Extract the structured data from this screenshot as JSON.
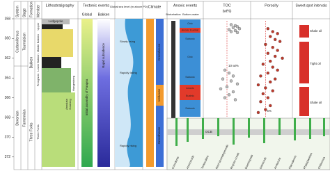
{
  "headers": {
    "system": "System",
    "stage": "Stage",
    "formation": "Formation",
    "member": "Member",
    "lithostratigraphy": "Lithostratigraphy",
    "tectonic": "Tectonic events",
    "tectonic_global": "Global",
    "tectonic_bakken": "Bakken",
    "sea_level": "Global sea level (m above PD)",
    "climate": "Climate",
    "anoxic": "Anoxic events",
    "bioturbation": "Bioturbation",
    "bottom_water": "Bottom-water",
    "toc": "TOC",
    "toc_unit": "(wt%)",
    "porosity": "Porosity",
    "sweet_spot": "Sweet-spot intervals"
  },
  "age": {
    "ylim": [
      358,
      373
    ],
    "ticks": [
      358,
      360,
      362,
      364,
      366,
      368,
      370,
      372
    ]
  },
  "systems": [
    "Carboniferous",
    "Devonian"
  ],
  "stages": [
    "Tournaisian",
    "Famennian"
  ],
  "formations": [
    "Bakken",
    "Three Forks"
  ],
  "members": [
    "Lodgepole",
    "Upper",
    "Middle Bakken",
    "Lower Bakken",
    "Pronghorn",
    "Three Forks"
  ],
  "litho_events": [
    "Annulata",
    "Dasberg",
    "Hangenberg"
  ],
  "tectonic_labels": [
    "Initial assembly of Pangea",
    "Rapid subsidence"
  ],
  "sea_level_labels": [
    "Slowly rising",
    "Rapidly falling",
    "Rapidly rising"
  ],
  "climate_labels": [
    "Greenhouse",
    "Icehouse",
    "Greenhouse"
  ],
  "bottom_water_labels": [
    "Oxic",
    "Anoxic Euxinic",
    "Suboxic",
    "Oxic",
    "Suboxic",
    "Anoxic",
    "Euxinic",
    "Suboxic"
  ],
  "toc": {
    "xlim": [
      0,
      20
    ],
    "reference": {
      "value": 10,
      "label": "10 wt%"
    },
    "points": [
      [
        12,
        358.6
      ],
      [
        14,
        358.7
      ],
      [
        15,
        358.8
      ],
      [
        13,
        358.9
      ],
      [
        16,
        359.0
      ],
      [
        11,
        359.1
      ],
      [
        14,
        359.2
      ],
      [
        12,
        359.3
      ],
      [
        15,
        359.4
      ],
      [
        9,
        363.2
      ],
      [
        11,
        363.5
      ],
      [
        13,
        363.8
      ],
      [
        8,
        364.1
      ],
      [
        12,
        364.3
      ],
      [
        15,
        364.6
      ],
      [
        10,
        364.9
      ],
      [
        7,
        365.1
      ],
      [
        13,
        365.4
      ],
      [
        11,
        365.7
      ],
      [
        9,
        366.0
      ],
      [
        14,
        366.2
      ]
    ]
  },
  "porosity": {
    "xlim": [
      0,
      15
    ],
    "reference": {
      "value": 5,
      "label": "5%"
    },
    "points": [
      [
        6,
        359.0
      ],
      [
        8,
        359.3
      ],
      [
        10,
        359.5
      ],
      [
        7,
        359.8
      ],
      [
        9,
        360.1
      ],
      [
        11,
        360.3
      ],
      [
        5,
        360.6
      ],
      [
        8,
        360.9
      ],
      [
        10,
        361.2
      ],
      [
        6,
        361.5
      ],
      [
        9,
        361.8
      ],
      [
        12,
        362.0
      ],
      [
        7,
        362.3
      ],
      [
        4,
        362.6
      ],
      [
        8,
        362.9
      ],
      [
        10,
        363.2
      ],
      [
        6,
        363.5
      ],
      [
        3,
        363.8
      ],
      [
        9,
        364.1
      ],
      [
        7,
        364.4
      ],
      [
        2,
        364.7
      ],
      [
        5,
        365.0
      ],
      [
        8,
        365.3
      ],
      [
        4,
        365.6
      ],
      [
        6,
        366.0
      ],
      [
        3,
        366.4
      ],
      [
        7,
        366.8
      ],
      [
        5,
        367.2
      ],
      [
        2,
        367.5
      ]
    ]
  },
  "sweet_spot_labels": [
    "Shale oil",
    "Tight oil",
    "Shale oil"
  ],
  "fossils": {
    "boundary": "DCB",
    "groups": [
      "Conodonts",
      "Ammonoids",
      "Tentaculites",
      "Reef stromatoporoids",
      "Rugose corals",
      "Brachiopods",
      "Ostracods",
      "Acritarchs",
      "Placoderms",
      "Phytoplankton",
      "Chitinozoa"
    ]
  }
}
